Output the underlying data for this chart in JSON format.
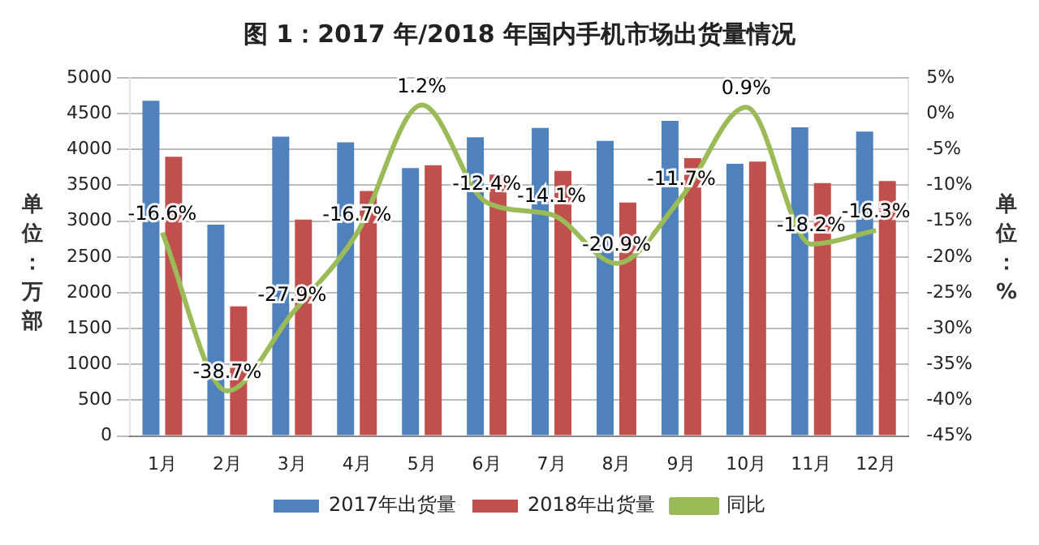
{
  "chart_data": {
    "type": "bar",
    "title": "图 1：2017 年/2018 年国内手机市场出货量情况",
    "ylabel": "单位：万部",
    "y2label": "单位：%",
    "categories": [
      "1月",
      "2月",
      "3月",
      "4月",
      "5月",
      "6月",
      "7月",
      "8月",
      "9月",
      "10月",
      "11月",
      "12月"
    ],
    "series": [
      {
        "name": "2017年出货量",
        "color": "#4f81bd",
        "values": [
          4680,
          2950,
          4180,
          4100,
          3740,
          4170,
          4300,
          4120,
          4400,
          3800,
          4310,
          4250
        ]
      },
      {
        "name": "2018年出货量",
        "color": "#c0504d",
        "values": [
          3900,
          1810,
          3020,
          3420,
          3780,
          3650,
          3700,
          3260,
          3880,
          3830,
          3530,
          3560
        ]
      },
      {
        "name": "同比",
        "type": "line",
        "axis": "y2",
        "color": "#9bbb59",
        "marker": "none",
        "values": [
          -16.6,
          -38.7,
          -27.9,
          -16.7,
          1.2,
          -12.4,
          -14.1,
          -20.9,
          -11.7,
          0.9,
          -18.2,
          -16.3
        ],
        "value_labels": [
          "-16.6%",
          "-38.7%",
          "-27.9%",
          "-16.7%",
          "1.2%",
          "-12.4%",
          "-14.1%",
          "-20.9%",
          "-11.7%",
          "0.9%",
          "-18.2%",
          "-16.3%"
        ]
      }
    ],
    "ylim": [
      0,
      5000
    ],
    "yticks": [
      0,
      500,
      1000,
      1500,
      2000,
      2500,
      3000,
      3500,
      4000,
      4500,
      5000
    ],
    "y2lim": [
      -45,
      5
    ],
    "y2ticks": [
      {
        "value": -45,
        "label": "-45%"
      },
      {
        "value": -40,
        "label": "-40%"
      },
      {
        "value": -35,
        "label": "-35%"
      },
      {
        "value": -30,
        "label": "-30%"
      },
      {
        "value": -25,
        "label": "-25%"
      },
      {
        "value": -20,
        "label": "-20%"
      },
      {
        "value": -15,
        "label": "-15%"
      },
      {
        "value": -10,
        "label": "-10%"
      },
      {
        "value": -5,
        "label": "-5%"
      },
      {
        "value": 0,
        "label": "0%"
      },
      {
        "value": 5,
        "label": "5%"
      }
    ],
    "grid": "y",
    "legend": "bottom"
  }
}
